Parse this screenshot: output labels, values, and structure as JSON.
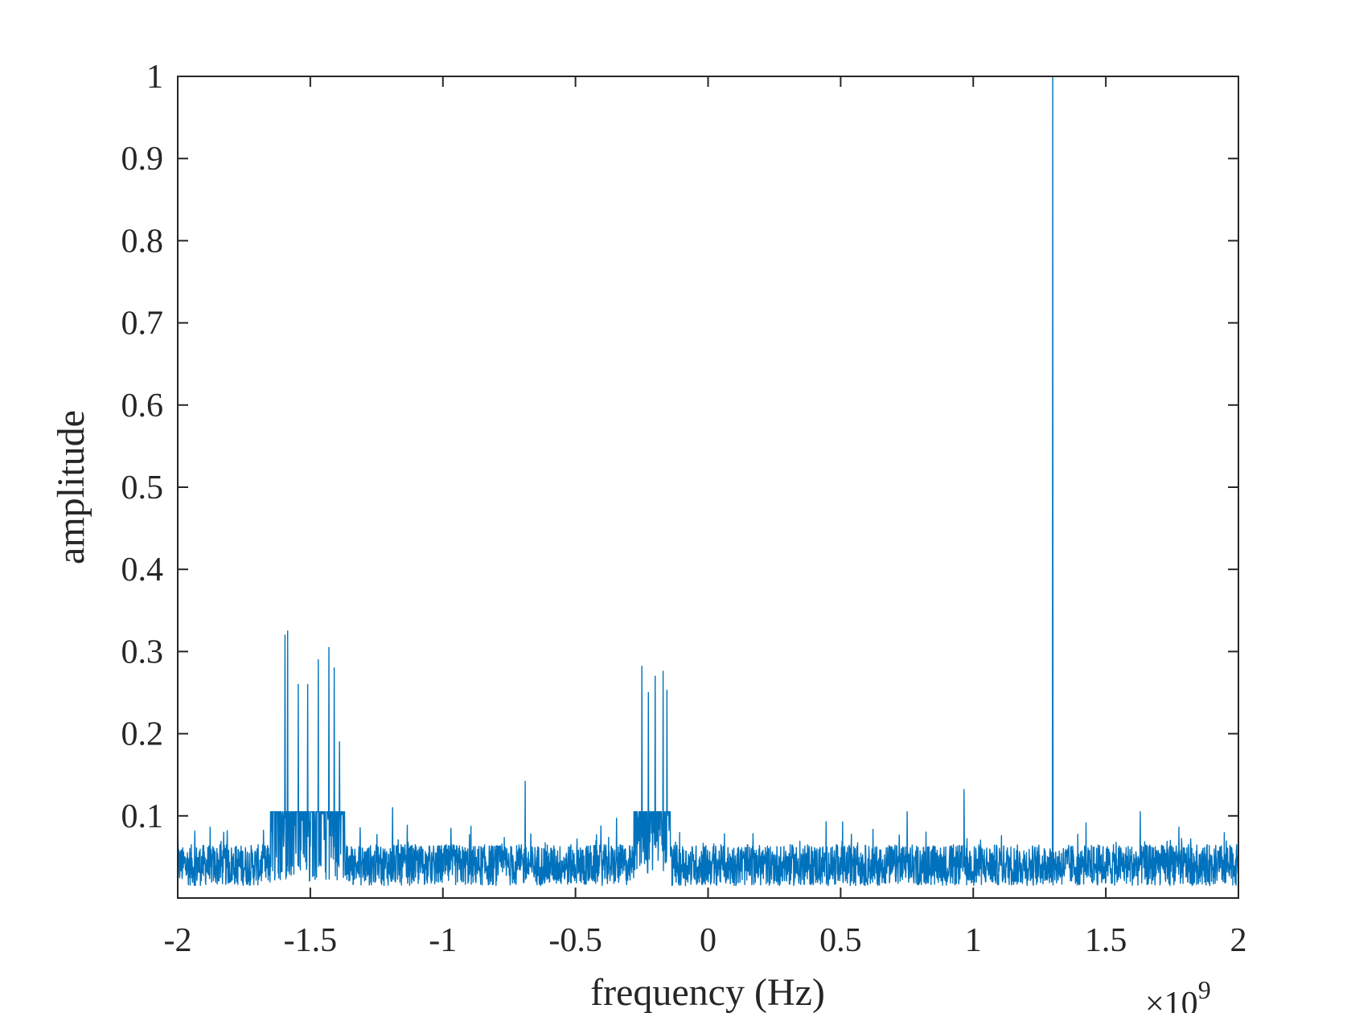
{
  "chart_data": {
    "type": "line",
    "title": "",
    "xlabel": "frequency (Hz)",
    "ylabel": "amplitude",
    "x_exponent_label": "×10",
    "x_exponent_power": "9",
    "xlim": [
      -2,
      2
    ],
    "ylim": [
      0,
      1
    ],
    "xticks": [
      -2,
      -1.5,
      -1,
      -0.5,
      0,
      0.5,
      1,
      1.5,
      2
    ],
    "xtick_labels": [
      "-2",
      "-1.5",
      "-1",
      "-0.5",
      "0",
      "0.5",
      "1",
      "1.5",
      "2"
    ],
    "yticks": [
      0.1,
      0.2,
      0.3,
      0.4,
      0.5,
      0.6,
      0.7,
      0.8,
      0.9,
      1
    ],
    "ytick_labels": [
      "0.1",
      "0.2",
      "0.3",
      "0.4",
      "0.5",
      "0.6",
      "0.7",
      "0.8",
      "0.9",
      "1"
    ],
    "grid": false,
    "legend": "none",
    "line_color": "#0072BD",
    "noise_floor": {
      "x_range": [
        -2,
        2
      ],
      "mean": 0.04,
      "range": [
        0.0,
        0.105
      ]
    },
    "features": [
      {
        "x": -1.595,
        "y": 0.32
      },
      {
        "x": -1.585,
        "y": 0.325
      },
      {
        "x": -1.545,
        "y": 0.26
      },
      {
        "x": -1.51,
        "y": 0.26
      },
      {
        "x": -1.47,
        "y": 0.29
      },
      {
        "x": -1.43,
        "y": 0.305
      },
      {
        "x": -1.41,
        "y": 0.28
      },
      {
        "x": -1.39,
        "y": 0.19
      },
      {
        "x": -1.19,
        "y": 0.11
      },
      {
        "x": -0.69,
        "y": 0.142
      },
      {
        "x": -0.25,
        "y": 0.282
      },
      {
        "x": -0.225,
        "y": 0.25
      },
      {
        "x": -0.2,
        "y": 0.27
      },
      {
        "x": -0.17,
        "y": 0.276
      },
      {
        "x": -0.155,
        "y": 0.253
      },
      {
        "x": 0.965,
        "y": 0.132
      },
      {
        "x": 1.3,
        "y": 1.0
      }
    ]
  }
}
